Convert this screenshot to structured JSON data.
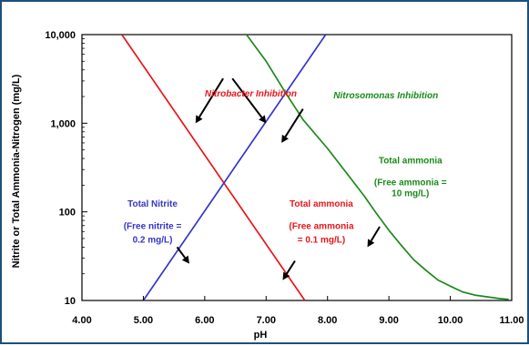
{
  "chart_data": {
    "type": "line",
    "title": "",
    "xlabel": "pH",
    "ylabel": "Nitrite or Total Ammonia-Nitrogen (mg/L)",
    "xlim": [
      4.0,
      11.0
    ],
    "ylim": [
      10,
      10000
    ],
    "yscale": "log",
    "grid": false,
    "x_ticks": [
      "4.00",
      "5.00",
      "6.00",
      "7.00",
      "8.00",
      "9.00",
      "10.00",
      "11.00"
    ],
    "y_ticks": [
      "10",
      "100",
      "1,000",
      "10,000"
    ],
    "series": [
      {
        "name": "Nitrobacter Inhibition",
        "color": "#e8161b",
        "points": [
          [
            4.65,
            10000
          ],
          [
            7.63,
            10
          ]
        ]
      },
      {
        "name": "Total Nitrite",
        "color": "#3535c8",
        "points": [
          [
            5.0,
            10
          ],
          [
            7.97,
            10000
          ]
        ]
      },
      {
        "name": "Nitrosomonas Inhibition",
        "color": "#1a8a1a",
        "points": [
          [
            6.68,
            10000
          ],
          [
            7.0,
            5000
          ],
          [
            7.3,
            2300
          ],
          [
            7.6,
            1100
          ],
          [
            8.0,
            520
          ],
          [
            8.3,
            280
          ],
          [
            8.6,
            150
          ],
          [
            8.8,
            95
          ],
          [
            9.0,
            62
          ],
          [
            9.2,
            42
          ],
          [
            9.4,
            29
          ],
          [
            9.6,
            22
          ],
          [
            9.8,
            17
          ],
          [
            10.0,
            14.5
          ],
          [
            10.2,
            12.5
          ],
          [
            10.4,
            11.5
          ],
          [
            10.6,
            11.0
          ],
          [
            10.8,
            10.5
          ],
          [
            10.95,
            10.3
          ]
        ]
      }
    ],
    "annotations": [
      {
        "text": "Nitrobacter Inhibition",
        "color": "#e8161b",
        "italic": true,
        "x": 6.75,
        "y": 2000
      },
      {
        "text": "Nitrosomonas Inhibition",
        "color": "#1a8a1a",
        "italic": true,
        "x": 8.95,
        "y": 1900
      },
      {
        "text": "Total ammonia",
        "color": "#1a8a1a",
        "italic": false,
        "x": 9.35,
        "y": 350
      },
      {
        "text": "(Free ammonia =",
        "color": "#1a8a1a",
        "italic": false,
        "x": 9.35,
        "y": 200
      },
      {
        "text": "10 mg/L)",
        "color": "#1a8a1a",
        "italic": false,
        "x": 9.35,
        "y": 150
      },
      {
        "text": "Total Nitrite",
        "color": "#3535c8",
        "italic": false,
        "x": 5.15,
        "y": 115
      },
      {
        "text": "(Free nitrite =",
        "color": "#3535c8",
        "italic": false,
        "x": 5.15,
        "y": 64
      },
      {
        "text": "0.2 mg/L)",
        "color": "#3535c8",
        "italic": false,
        "x": 5.15,
        "y": 45
      },
      {
        "text": "Total ammonia",
        "color": "#e8161b",
        "italic": false,
        "x": 7.9,
        "y": 115
      },
      {
        "text": "(Free ammonia",
        "color": "#e8161b",
        "italic": false,
        "x": 7.9,
        "y": 64
      },
      {
        "text": "= 0.1 mg/L)",
        "color": "#e8161b",
        "italic": false,
        "x": 7.9,
        "y": 45
      }
    ],
    "arrows": [
      {
        "from": [
          6.3,
          3200
        ],
        "to": [
          5.85,
          1000
        ]
      },
      {
        "from": [
          6.45,
          3200
        ],
        "to": [
          7.0,
          1000
        ]
      },
      {
        "from": [
          7.6,
          1450
        ],
        "to": [
          7.25,
          600
        ]
      },
      {
        "from": [
          8.85,
          68
        ],
        "to": [
          8.65,
          40
        ]
      },
      {
        "from": [
          5.55,
          40
        ],
        "to": [
          5.75,
          26
        ]
      },
      {
        "from": [
          7.47,
          28
        ],
        "to": [
          7.27,
          17
        ]
      }
    ]
  }
}
